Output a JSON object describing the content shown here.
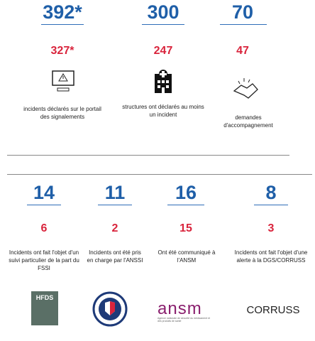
{
  "top_stats": [
    {
      "total": "392*",
      "reported": "327*",
      "description": "incidents déclarés sur le portail des signalements"
    },
    {
      "total": "300",
      "reported": "247",
      "description": "structures ont déclarés au moins un incident"
    },
    {
      "total": "70",
      "reported": "47",
      "description": "demandes d'accompagnement"
    }
  ],
  "bottom_stats": [
    {
      "total": "14",
      "subset": "6",
      "description": "Incidents ont fait l'objet d'un suivi particulier de la part du FSSI"
    },
    {
      "total": "11",
      "subset": "2",
      "description": "Incidents ont été pris en charge par l'ANSSI"
    },
    {
      "total": "16",
      "subset": "15",
      "description": "Ont été communiqué à l'ANSM"
    },
    {
      "total": "8",
      "subset": "3",
      "description": "Incidents ont fait l'objet d'une alerte à la DGS/CORRUSS"
    }
  ],
  "logos": {
    "hfds": "HFDS",
    "ansm": "ansm",
    "ansm_subtitle": "Agence nationale de sécurité du médicament et des produits de santé",
    "corruss": "CORRUSS"
  }
}
